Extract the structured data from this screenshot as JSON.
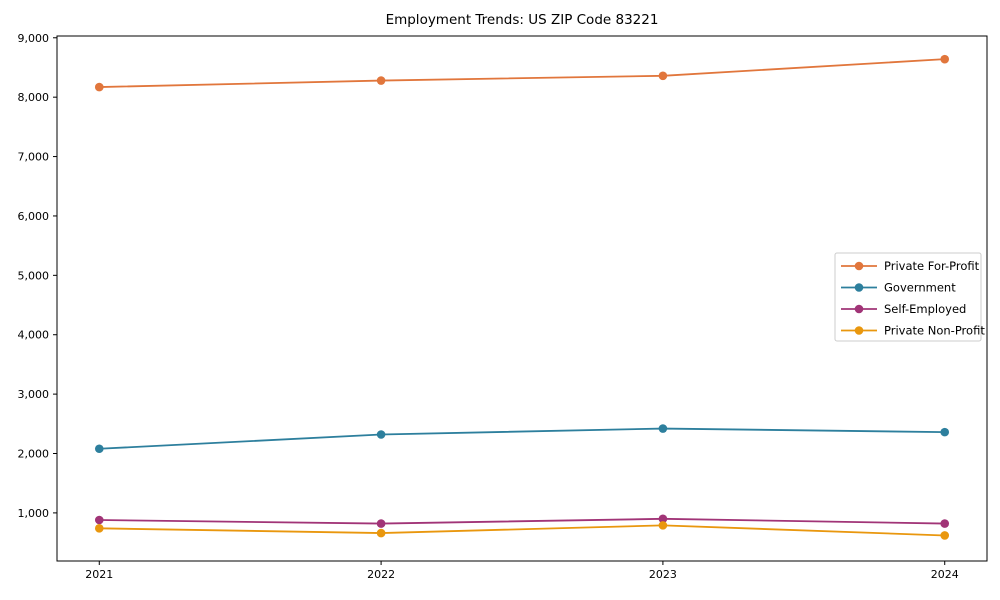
{
  "chart_data": {
    "type": "line",
    "title": "Employment Trends: US ZIP Code 83221",
    "x": [
      2021,
      2022,
      2023,
      2024
    ],
    "x_tick_labels": [
      "2021",
      "2022",
      "2023",
      "2024"
    ],
    "xlabel": "",
    "ylabel": "",
    "series": [
      {
        "name": "Private For-Profit",
        "color": "#e1763c",
        "marker": "circle",
        "values": [
          8170,
          8280,
          8360,
          8640
        ]
      },
      {
        "name": "Government",
        "color": "#2d7f9d",
        "marker": "circle",
        "values": [
          2080,
          2320,
          2420,
          2360
        ]
      },
      {
        "name": "Self-Employed",
        "color": "#a13477",
        "marker": "circle",
        "values": [
          880,
          820,
          900,
          820
        ]
      },
      {
        "name": "Private Non-Profit",
        "color": "#e9970e",
        "marker": "circle",
        "values": [
          740,
          660,
          790,
          620
        ]
      }
    ],
    "yticks": [
      1000,
      2000,
      3000,
      4000,
      5000,
      6000,
      7000,
      8000,
      9000
    ],
    "ytick_labels": [
      "1,000",
      "2,000",
      "3,000",
      "4,000",
      "5,000",
      "6,000",
      "7,000",
      "8,000",
      "9,000"
    ],
    "ylim": [
      190,
      9030
    ],
    "xlim": [
      2020.85,
      2024.15
    ],
    "grid": false,
    "legend_position": "center right"
  },
  "colors": {
    "axis": "#000000",
    "background": "#ffffff",
    "legend_border": "#cccccc",
    "legend_background": "#ffffff"
  }
}
